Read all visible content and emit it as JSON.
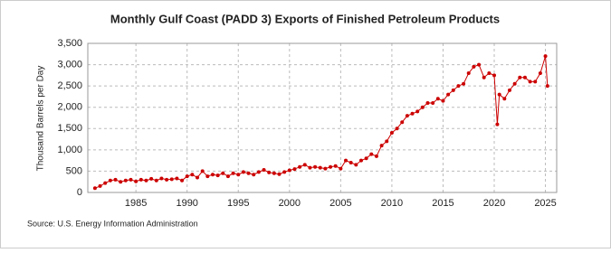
{
  "chart_data": {
    "type": "line",
    "title": "Monthly Gulf Coast (PADD 3) Exports of Finished Petroleum Products",
    "y_label": "Thousand Barrels per Day",
    "source": "Source: U.S. Energy Information Administration",
    "color": "#cc0000",
    "grid": true,
    "xlim": [
      1980.3,
      2026.1
    ],
    "xticks": [
      1985,
      1990,
      1995,
      2000,
      2005,
      2010,
      2015,
      2020,
      2025
    ],
    "ylim": [
      0,
      3500
    ],
    "yticks": [
      0,
      500,
      {
        "value": 1000,
        "label": "1,000"
      },
      {
        "value": 1500,
        "label": "1,500"
      },
      {
        "value": 2000,
        "label": "2,000"
      },
      {
        "value": 2500,
        "label": "2,500"
      },
      {
        "value": 3000,
        "label": "3,000"
      },
      {
        "value": 3500,
        "label": "3,500"
      }
    ],
    "x": [
      1981,
      1981.5,
      1982,
      1982.5,
      1983,
      1983.5,
      1984,
      1984.5,
      1985,
      1985.5,
      1986,
      1986.5,
      1987,
      1987.5,
      1988,
      1988.5,
      1989,
      1989.5,
      1990,
      1990.5,
      1991,
      1991.5,
      1992,
      1992.5,
      1993,
      1993.5,
      1994,
      1994.5,
      1995,
      1995.5,
      1996,
      1996.5,
      1997,
      1997.5,
      1998,
      1998.5,
      1999,
      1999.5,
      2000,
      2000.5,
      2001,
      2001.5,
      2002,
      2002.5,
      2003,
      2003.5,
      2004,
      2004.5,
      2005,
      2005.5,
      2006,
      2006.5,
      2007,
      2007.5,
      2008,
      2008.5,
      2009,
      2009.5,
      2010,
      2010.5,
      2011,
      2011.5,
      2012,
      2012.5,
      2013,
      2013.5,
      2014,
      2014.5,
      2015,
      2015.5,
      2016,
      2016.5,
      2017,
      2017.5,
      2018,
      2018.5,
      2019,
      2019.5,
      2020,
      2020.3,
      2020.5,
      2021,
      2021.5,
      2022,
      2022.5,
      2023,
      2023.5,
      2024,
      2024.5,
      2025,
      2025.2
    ],
    "values": [
      100,
      150,
      220,
      280,
      300,
      250,
      280,
      300,
      260,
      300,
      280,
      320,
      280,
      330,
      300,
      310,
      330,
      280,
      380,
      420,
      350,
      500,
      380,
      420,
      400,
      450,
      380,
      450,
      420,
      480,
      450,
      420,
      480,
      530,
      470,
      450,
      430,
      480,
      520,
      550,
      600,
      650,
      580,
      600,
      580,
      560,
      600,
      620,
      560,
      750,
      700,
      650,
      750,
      800,
      900,
      850,
      1100,
      1200,
      1400,
      1500,
      1650,
      1800,
      1850,
      1900,
      2000,
      2100,
      2100,
      2200,
      2150,
      2300,
      2400,
      2500,
      2550,
      2800,
      2950,
      3000,
      2700,
      2800,
      2750,
      1600,
      2300,
      2200,
      2400,
      2550,
      2700,
      2700,
      2600,
      2600,
      2800,
      3200,
      2500
    ]
  }
}
